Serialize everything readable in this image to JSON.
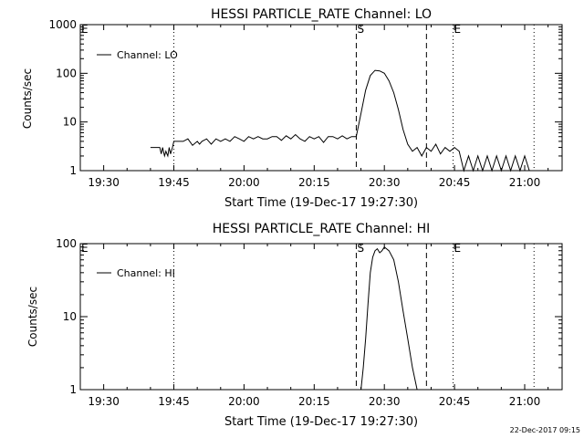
{
  "chart_data": [
    {
      "type": "line",
      "title": "HESSI PARTICLE_RATE Channel: LO",
      "xlabel": "Start Time (19-Dec-17 19:27:30)",
      "ylabel": "Counts/sec",
      "yscale": "log",
      "ylim": [
        1,
        1000
      ],
      "xlim": [
        "19:25",
        "21:08"
      ],
      "x_ticks": [
        "19:30",
        "19:45",
        "20:00",
        "20:15",
        "20:30",
        "20:45",
        "21:00"
      ],
      "y_ticks": [
        "1",
        "10",
        "100",
        "1000"
      ],
      "legend": {
        "position": "upper-left",
        "entries": [
          "Channel: LO"
        ]
      },
      "markers": [
        {
          "label": "E",
          "time": "19:25",
          "style": "none"
        },
        {
          "label": "",
          "time": "19:45",
          "style": "dotted"
        },
        {
          "label": "S",
          "time": "20:24",
          "style": "dashed"
        },
        {
          "label": "",
          "time": "20:39",
          "style": "dashed"
        },
        {
          "label": "E",
          "time": "20:44.7",
          "style": "dotted"
        },
        {
          "label": "",
          "time": "21:02",
          "style": "dotted"
        }
      ],
      "series": [
        {
          "name": "Channel: LO",
          "x": [
            "19:40",
            "19:42",
            "19:42.3",
            "19:42.6",
            "19:43",
            "19:43.3",
            "19:43.7",
            "19:44",
            "19:44.3",
            "19:44.7",
            "19:45",
            "19:46",
            "19:47",
            "19:48",
            "19:49",
            "19:50",
            "19:50.5",
            "19:51",
            "19:52",
            "19:53",
            "19:54",
            "19:55",
            "19:56",
            "19:57",
            "19:58",
            "19:59",
            "20:00",
            "20:01",
            "20:02",
            "20:03",
            "20:04",
            "20:05",
            "20:06",
            "20:07",
            "20:08",
            "20:09",
            "20:10",
            "20:11",
            "20:12",
            "20:13",
            "20:14",
            "20:15",
            "20:16",
            "20:17",
            "20:18",
            "20:19",
            "20:20",
            "20:21",
            "20:22",
            "20:23",
            "20:24",
            "20:25",
            "20:26",
            "20:27",
            "20:28",
            "20:29",
            "20:30",
            "20:31",
            "20:32",
            "20:33",
            "20:34",
            "20:35",
            "20:36",
            "20:37",
            "20:38",
            "20:39",
            "20:40",
            "20:41",
            "20:42",
            "20:43",
            "20:44",
            "20:45",
            "20:46",
            "20:47",
            "20:48",
            "20:49",
            "20:50",
            "20:51",
            "20:52",
            "20:53",
            "20:54",
            "20:55",
            "20:56",
            "20:57",
            "20:58",
            "20:59",
            "21:00",
            "21:01",
            "21:02"
          ],
          "y": [
            3,
            3,
            2.2,
            3,
            2,
            2.5,
            2,
            3,
            2.2,
            3,
            4,
            4,
            4,
            4.5,
            3.3,
            4,
            3.5,
            4,
            4.5,
            3.5,
            4.5,
            4,
            4.5,
            4,
            5,
            4.5,
            4,
            5,
            4.5,
            5,
            4.5,
            4.5,
            5,
            5,
            4.2,
            5.2,
            4.5,
            5.5,
            4.5,
            4,
            5,
            4.5,
            5,
            3.8,
            5,
            5,
            4.5,
            5.2,
            4.5,
            5,
            5,
            15,
            45,
            90,
            115,
            112,
            100,
            70,
            40,
            18,
            7,
            3.5,
            2.5,
            3,
            2,
            3,
            2.5,
            3.5,
            2.2,
            3,
            2.5,
            3,
            2.5,
            1,
            2,
            1,
            2,
            1,
            2,
            1,
            2,
            1,
            2,
            1,
            2,
            1,
            2,
            1,
            1
          ]
        }
      ]
    },
    {
      "type": "line",
      "title": "HESSI PARTICLE_RATE Channel: HI",
      "xlabel": "Start Time (19-Dec-17 19:27:30)",
      "ylabel": "Counts/sec",
      "yscale": "log",
      "ylim": [
        1,
        100
      ],
      "xlim": [
        "19:25",
        "21:08"
      ],
      "x_ticks": [
        "19:30",
        "19:45",
        "20:00",
        "20:15",
        "20:30",
        "20:45",
        "21:00"
      ],
      "y_ticks": [
        "1",
        "10",
        "100"
      ],
      "legend": {
        "position": "upper-left",
        "entries": [
          "Channel: HI"
        ]
      },
      "markers": [
        {
          "label": "E",
          "time": "19:25",
          "style": "none"
        },
        {
          "label": "",
          "time": "19:45",
          "style": "dotted"
        },
        {
          "label": "S",
          "time": "20:24",
          "style": "dashed"
        },
        {
          "label": "",
          "time": "20:39",
          "style": "dashed"
        },
        {
          "label": "E",
          "time": "20:44.7",
          "style": "dotted"
        },
        {
          "label": "",
          "time": "21:02",
          "style": "dotted"
        }
      ],
      "series": [
        {
          "name": "Channel: HI",
          "x": [
            "20:25",
            "20:25.5",
            "20:26",
            "20:26.5",
            "20:27",
            "20:27.5",
            "20:28",
            "20:28.5",
            "20:29",
            "20:29.5",
            "20:30",
            "20:31",
            "20:32",
            "20:33",
            "20:34",
            "20:35",
            "20:36",
            "20:37"
          ],
          "y": [
            1,
            2,
            5,
            15,
            40,
            65,
            80,
            85,
            75,
            80,
            90,
            80,
            60,
            30,
            12,
            5,
            2,
            1
          ]
        }
      ]
    }
  ],
  "timestamp": "22-Dec-2017 09:15"
}
